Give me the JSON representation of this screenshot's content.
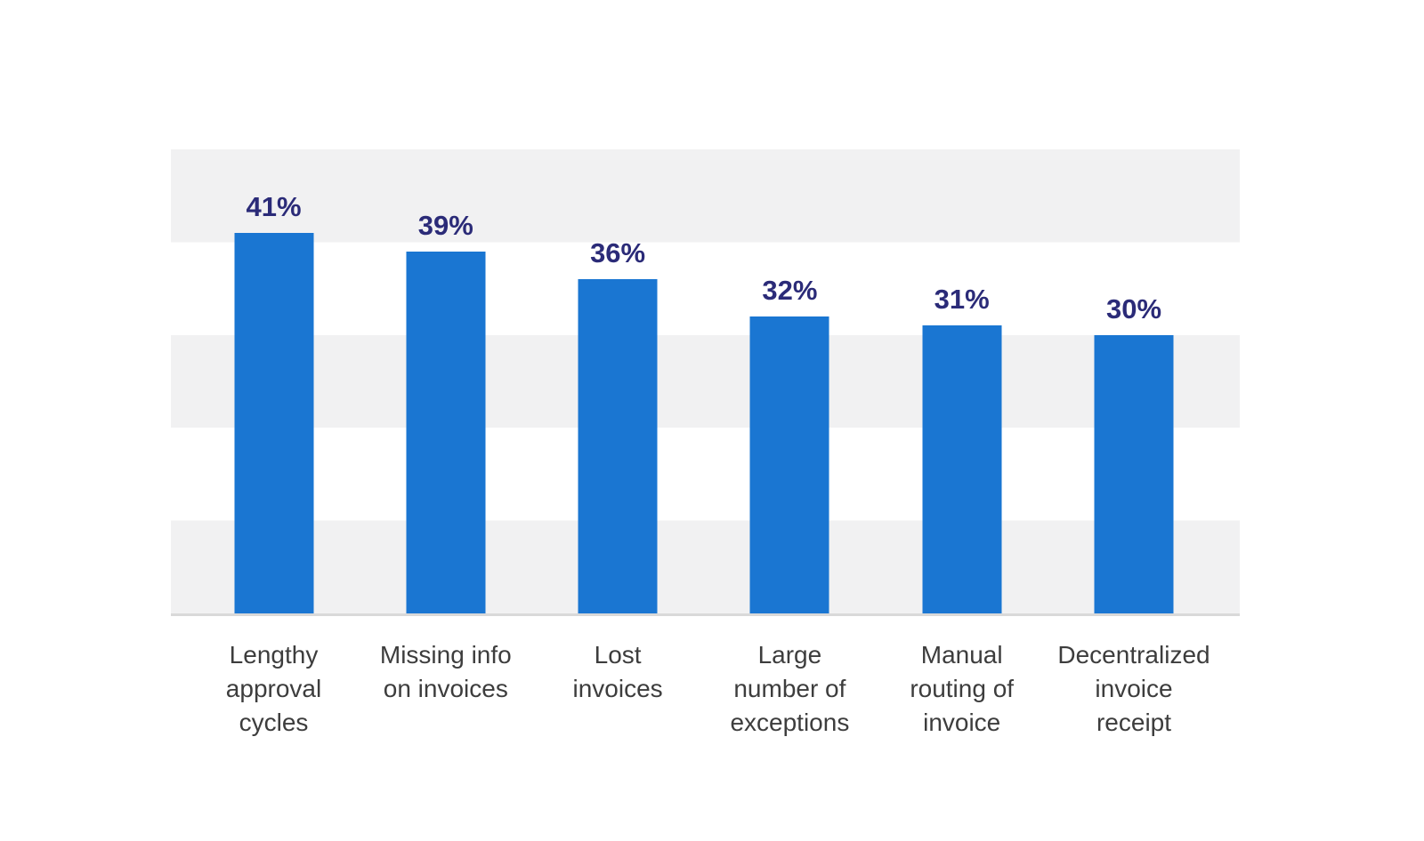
{
  "page": {
    "background": "#FFFFFF"
  },
  "chart_data": {
    "type": "bar",
    "title": "",
    "xlabel": "",
    "ylabel": "",
    "categories": [
      "Lengthy approval cycles",
      "Missing info on invoices",
      "Lost invoices",
      "Large number of exceptions",
      "Manual routing of invoice",
      "Decentralized invoice receipt"
    ],
    "values": [
      41,
      39,
      36,
      32,
      31,
      30
    ],
    "value_labels": [
      "41%",
      "39%",
      "36%",
      "32%",
      "31%",
      "30%"
    ],
    "label_lines": [
      [
        "Lengthy",
        "approval",
        "cycles"
      ],
      [
        "Missing info",
        "on invoices"
      ],
      [
        "Lost",
        "invoices"
      ],
      [
        "Large",
        "number of",
        "exceptions"
      ],
      [
        "Manual",
        "routing of",
        "invoice"
      ],
      [
        "Decentralized",
        "invoice",
        "receipt"
      ]
    ],
    "ylim": [
      0,
      50
    ],
    "band_step_percent": 10,
    "grid": "alternating-horizontal-bands",
    "legend": "none",
    "axis_tick_labels": "none",
    "colors": {
      "bar": "#1A76D2",
      "value_label": "#2B2B78",
      "category_label": "#3D3D3D",
      "band_gray": "#F1F1F2",
      "band_white": "#FFFFFF",
      "axis_line": "#D9D9D9",
      "background": "#FFFFFF"
    }
  }
}
